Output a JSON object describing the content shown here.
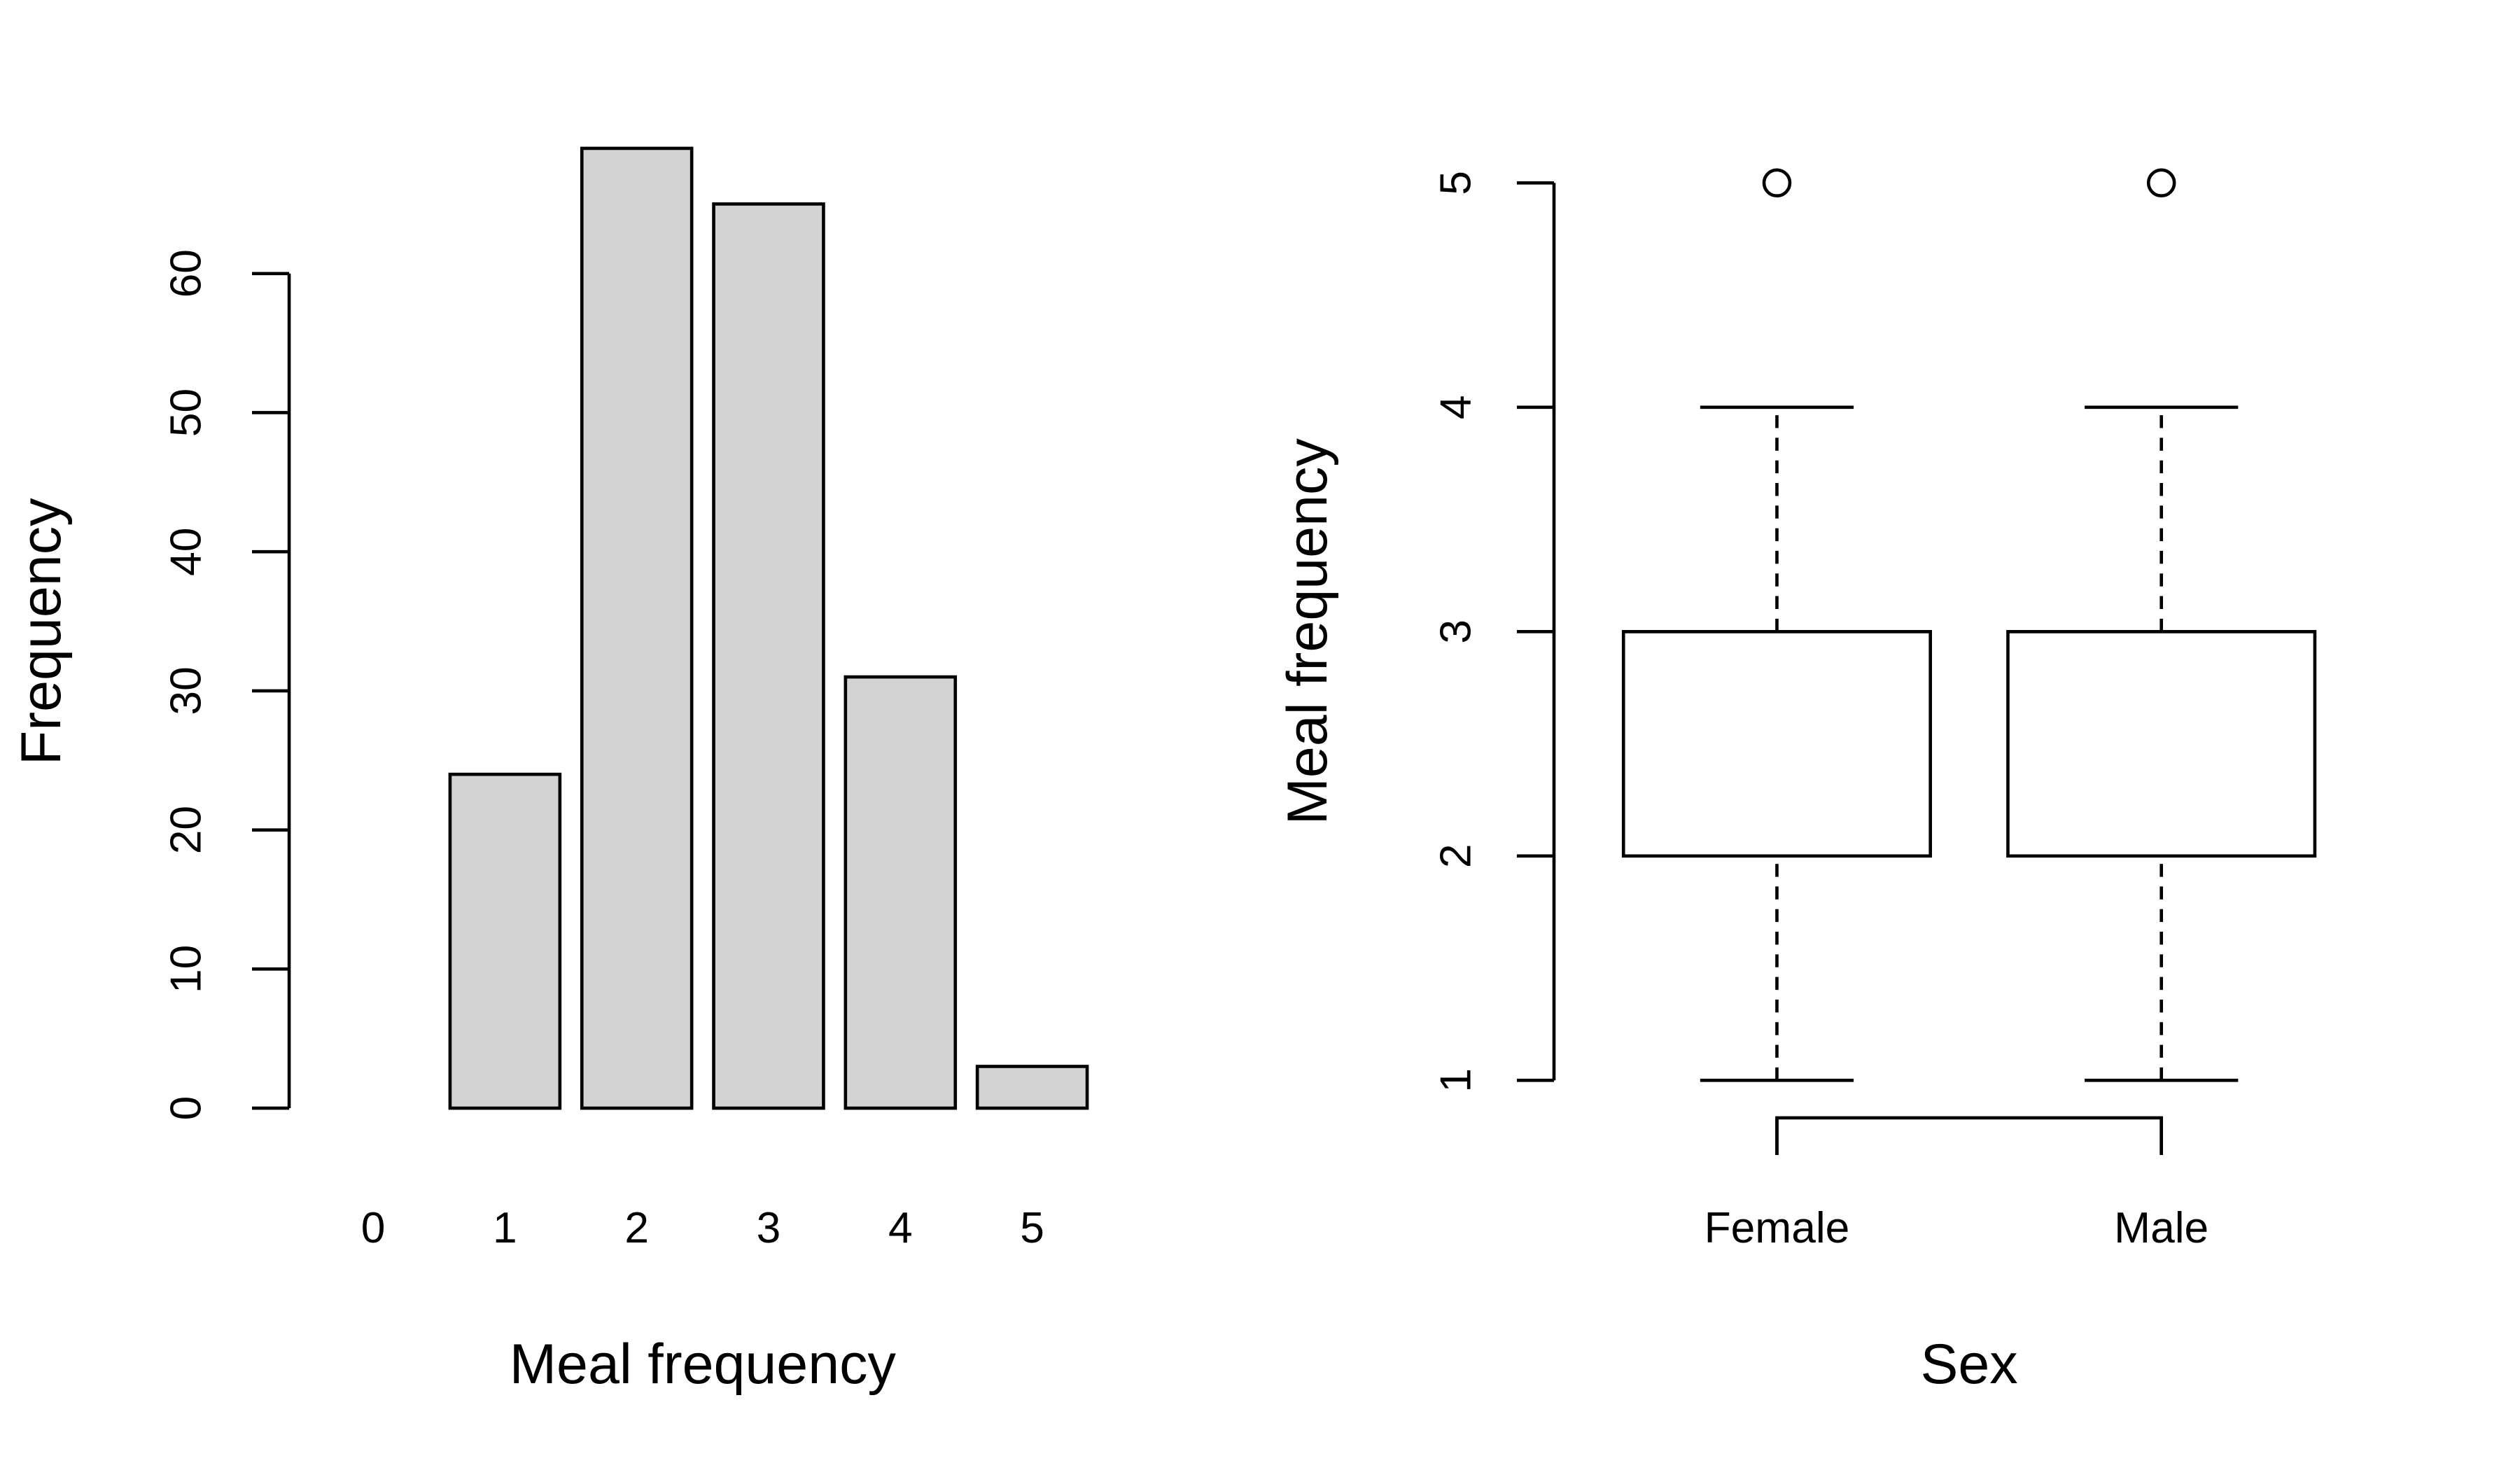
{
  "chart_data": [
    {
      "type": "bar",
      "xlabel": "Meal frequency",
      "ylabel": "Frequency",
      "categories": [
        "0",
        "1",
        "2",
        "3",
        "4",
        "5"
      ],
      "values": [
        0,
        24,
        69,
        65,
        31,
        3
      ],
      "color": "#d3d3d3",
      "ylim": [
        0,
        72
      ],
      "yticks": [
        0,
        10,
        20,
        30,
        40,
        50,
        60
      ]
    },
    {
      "type": "box",
      "xlabel": "Sex",
      "ylabel": "Meal frequency",
      "categories": [
        "Female",
        "Male"
      ],
      "boxes": [
        {
          "whislo": 1,
          "q1": 2,
          "median": 3,
          "q3": 3,
          "whishi": 4,
          "outliers": [
            5
          ]
        },
        {
          "whislo": 1,
          "q1": 2,
          "median": 3,
          "q3": 3,
          "whishi": 4,
          "outliers": [
            5
          ]
        }
      ],
      "color": "#ffffff",
      "ylim": [
        0.84,
        5.16
      ],
      "yticks": [
        1,
        2,
        3,
        4,
        5
      ]
    }
  ]
}
